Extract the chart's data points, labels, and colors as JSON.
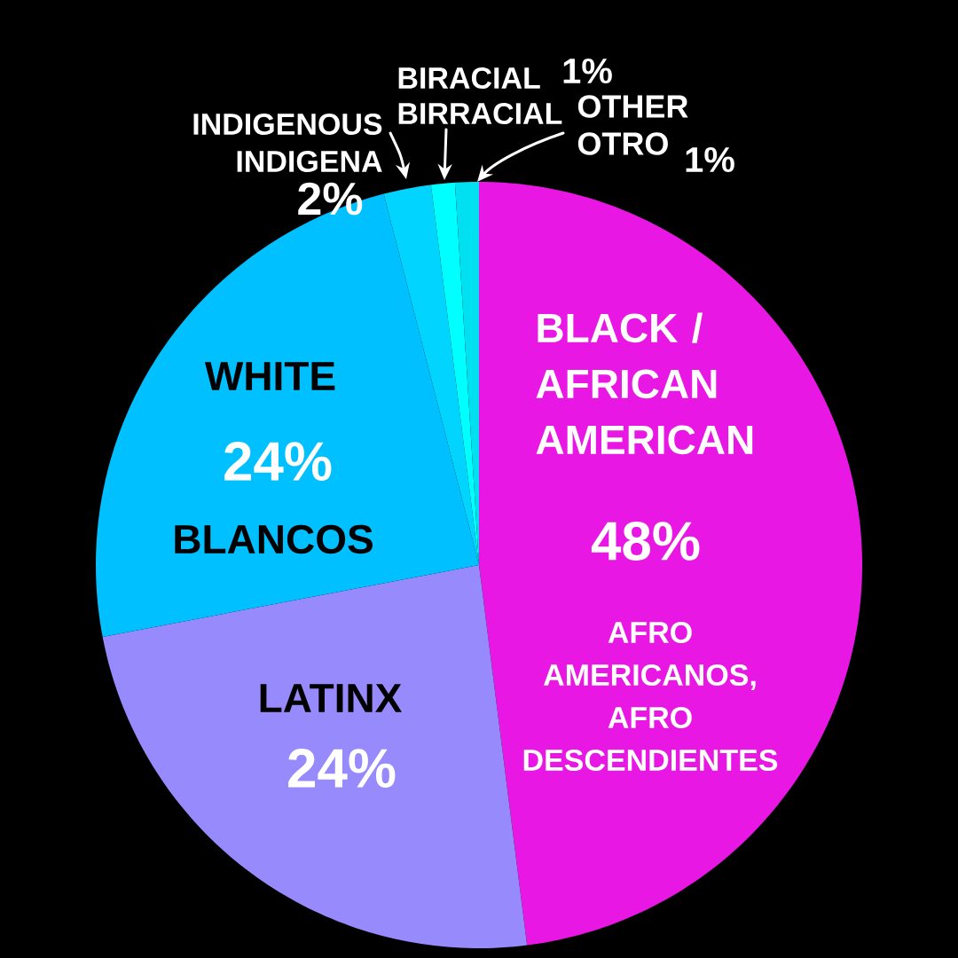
{
  "chart_data": {
    "type": "pie",
    "categories": [
      "BLACK / AFRICAN AMERICAN",
      "LATINX",
      "WHITE",
      "INDIGENOUS",
      "BIRACIAL",
      "OTHER"
    ],
    "values": [
      48,
      24,
      24,
      2,
      1,
      1
    ],
    "colors": [
      "#e817e3",
      "#978afc",
      "#00c0ff",
      "#00d4ff",
      "#00ffff",
      "#00e0f0"
    ],
    "value_labels": [
      "48%",
      "24%",
      "24%",
      "2%",
      "1%",
      "1%"
    ],
    "annotations": [
      "AFRO AMERICANOS, AFRO DESCENDIENTES",
      "BLANCOS",
      "INDIGENA",
      "BIRRACIAL",
      "OTRO"
    ]
  }
}
